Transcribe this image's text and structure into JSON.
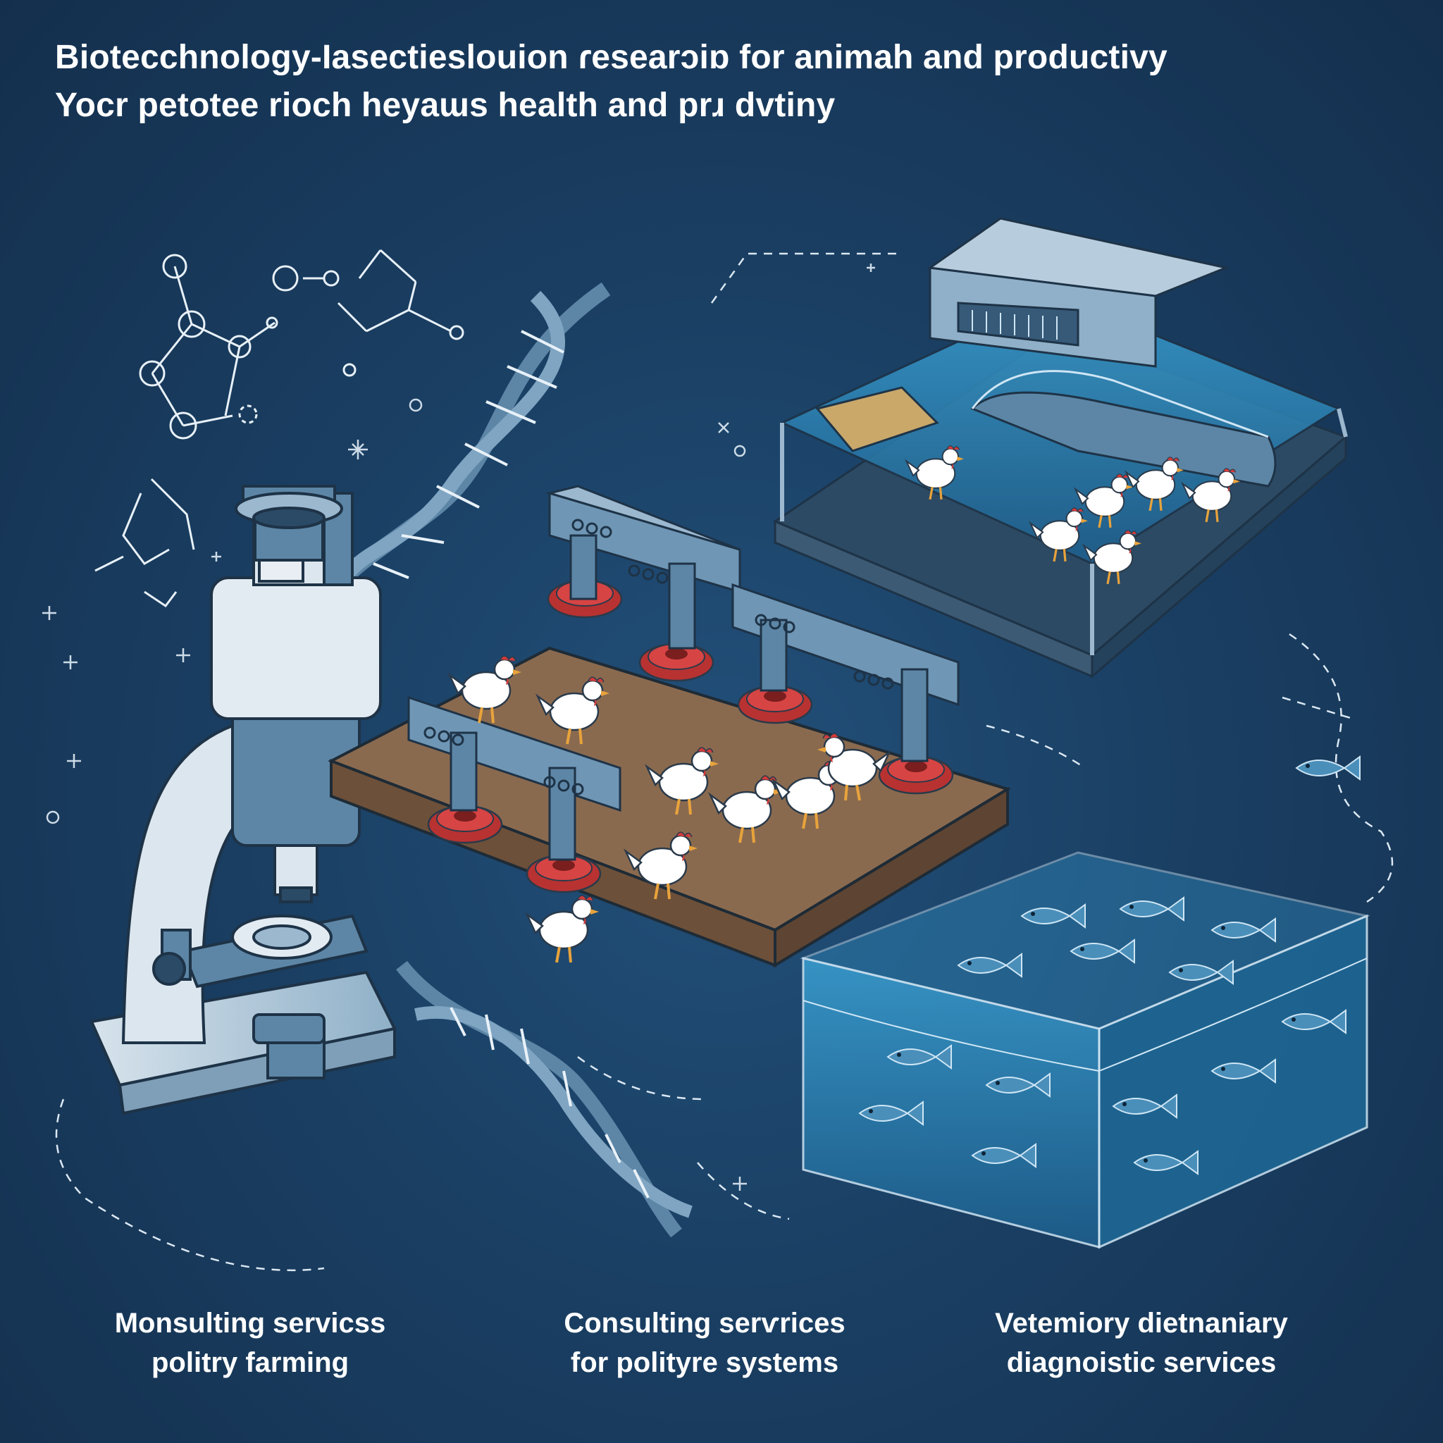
{
  "header": {
    "line1": "Biotecchnology-Ɩasectieslouion ɾesearɔiɒ for animah and productivy",
    "line2": "Yocr petotee rioch heyaɯs health and prɹ dvtiny"
  },
  "captions": [
    {
      "line1": "Monsulting servicss",
      "line2": "politry farming"
    },
    {
      "line1": "Consulting serѵrices",
      "line2": "for polityre systems"
    },
    {
      "line1": "Vetemiory dietnaniary",
      "line2": "diagnoistic services"
    }
  ],
  "palette": {
    "background": "#1a3f63",
    "line": "#e8f1f8",
    "steel": "#5d86a6",
    "steel_light": "#9bb8cf",
    "feeder_red": "#c93a3a",
    "soil": "#8a6a4f",
    "water": "#2f86b8",
    "chicken": "#ffffff"
  },
  "icons": [
    "molecule-icon",
    "dna-helix-icon",
    "microscope-icon",
    "chicken-icon",
    "fish-icon",
    "feeder-icon"
  ]
}
